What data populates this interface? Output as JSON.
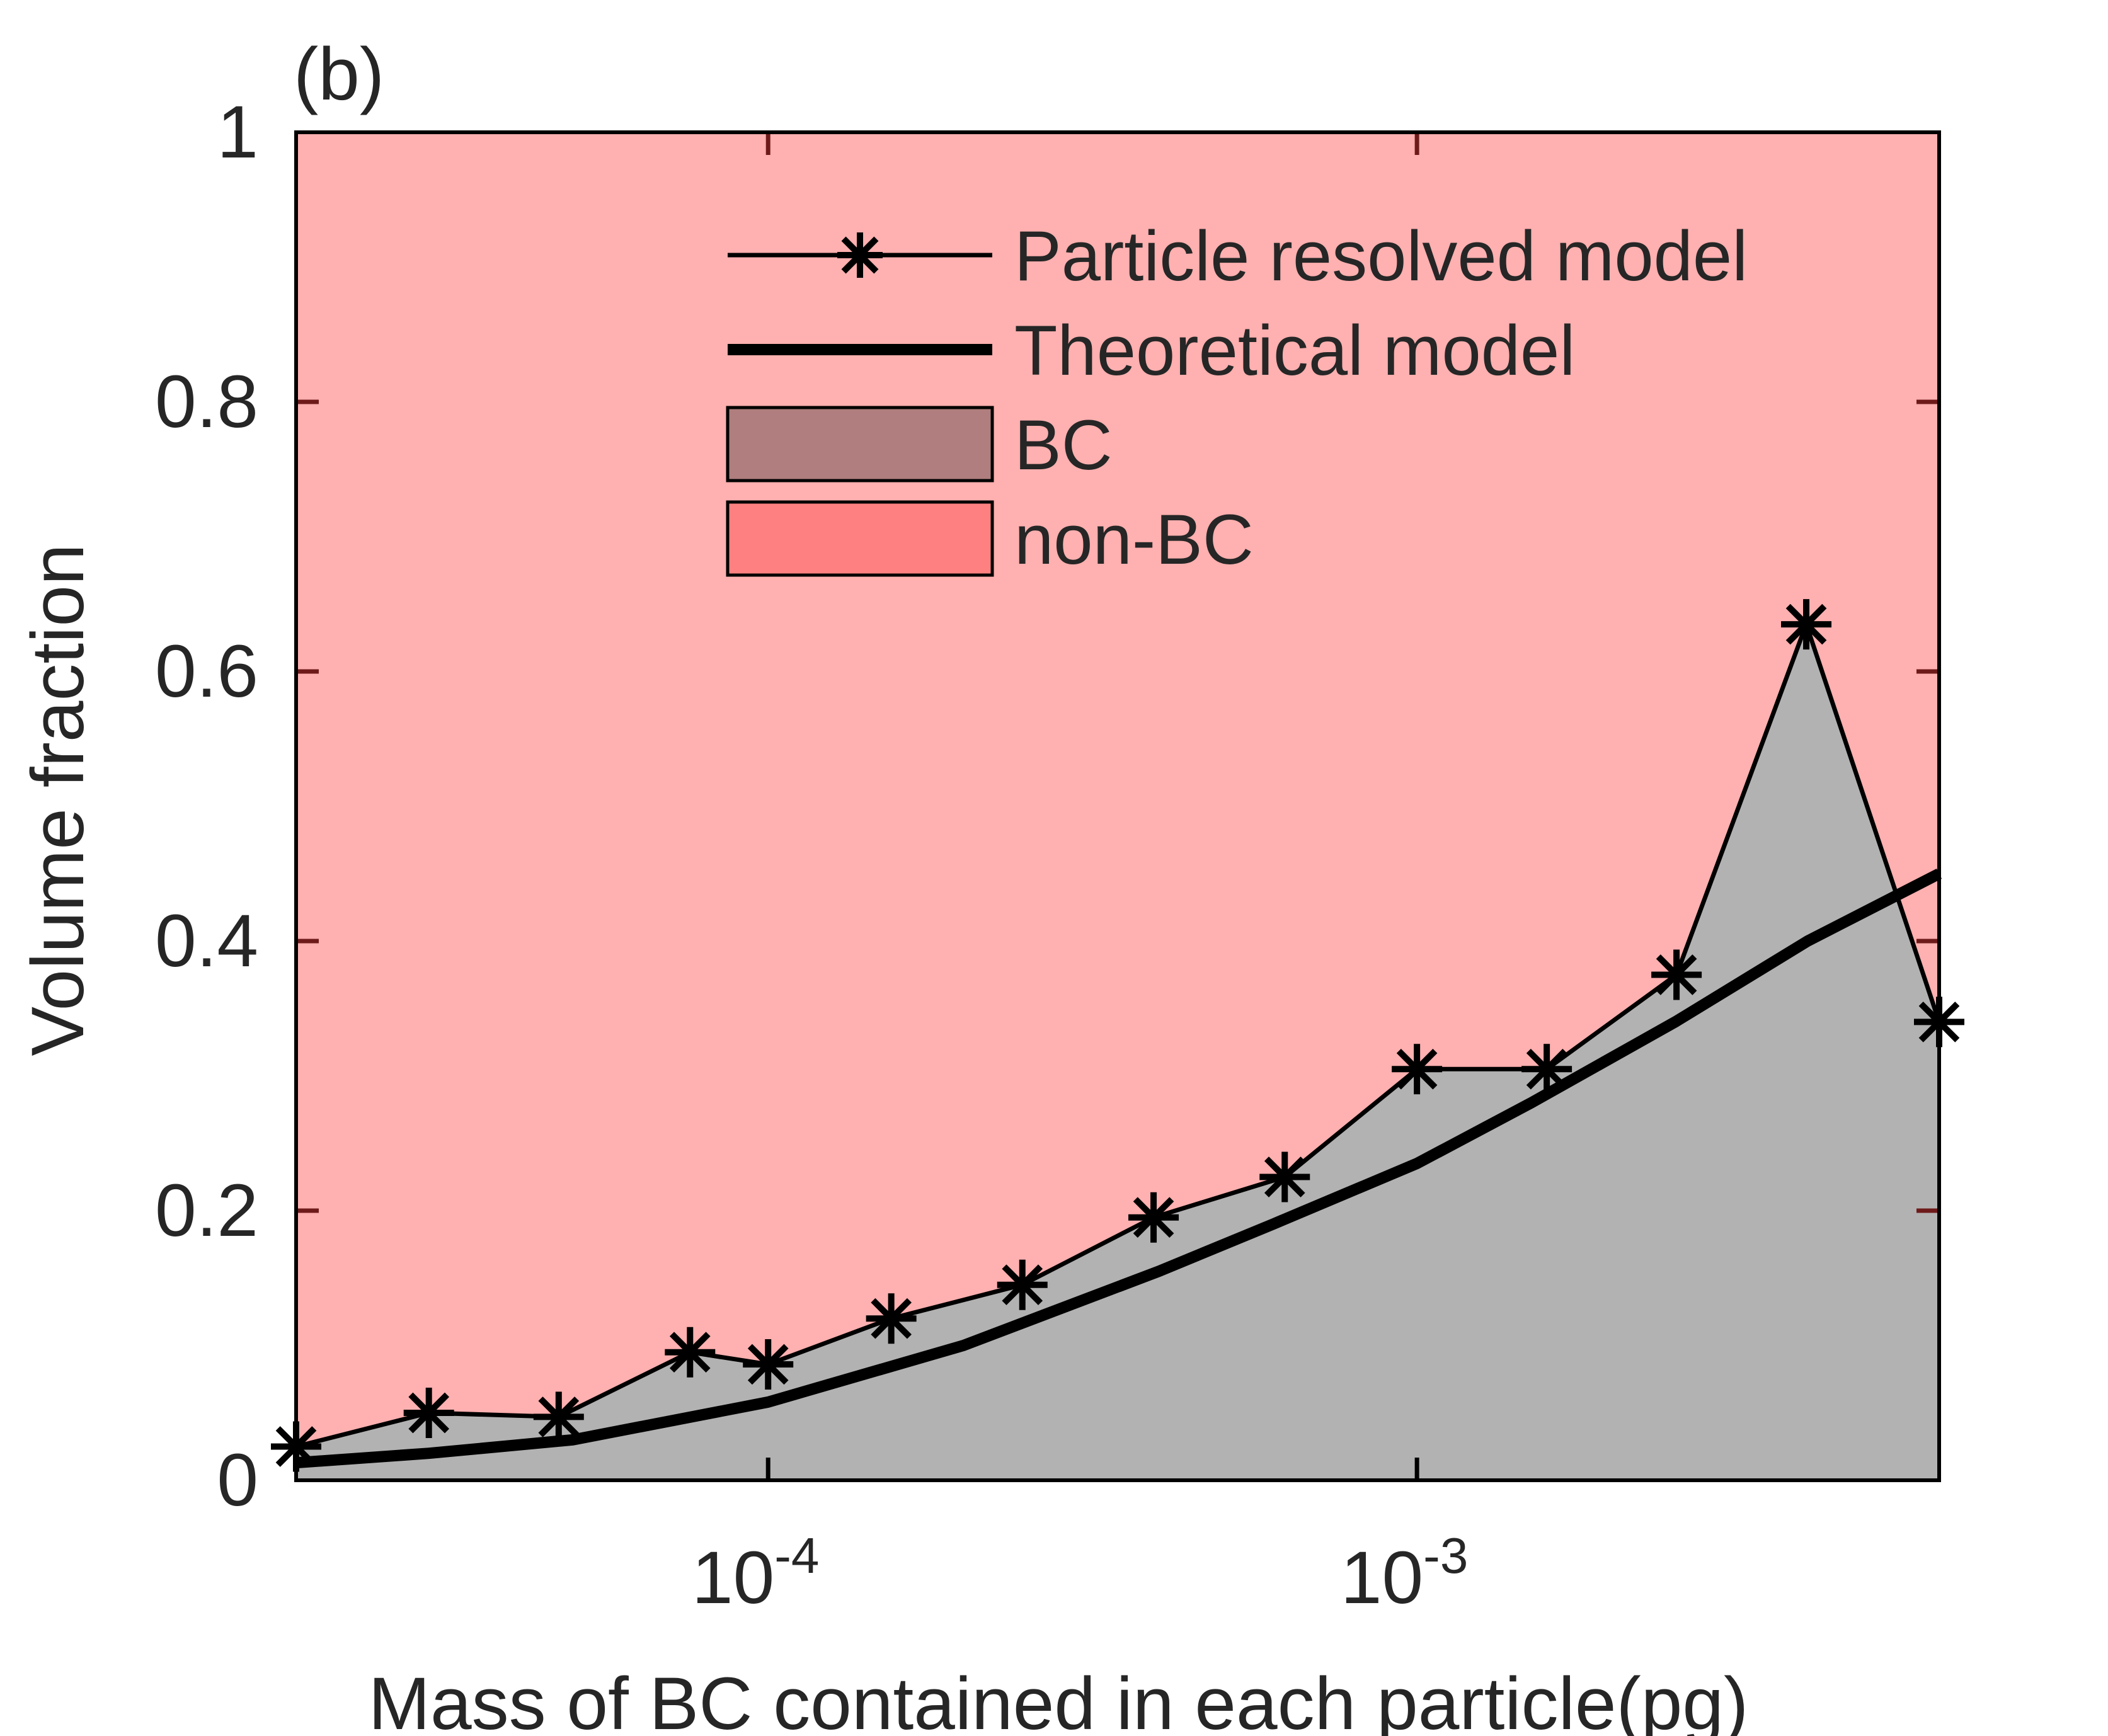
{
  "chart_data": {
    "type": "area",
    "panel_label": "(b)",
    "title": "",
    "xlabel": "Mass of BC contained in each particle(pg)",
    "ylabel": "Volume fraction",
    "xscale": "log",
    "xlim": [
      1.873e-05,
      0.00638
    ],
    "ylim": [
      0,
      1
    ],
    "yticks": [
      0,
      0.2,
      0.4,
      0.6,
      0.8,
      1
    ],
    "ytick_labels": [
      "0",
      "0.2",
      "0.4",
      "0.6",
      "0.8",
      "1"
    ],
    "xticks": [
      0.0001,
      0.001
    ],
    "xtick_labels": [
      {
        "base": "10",
        "exp": "-4"
      },
      {
        "base": "10",
        "exp": "-3"
      }
    ],
    "grid": false,
    "legend_position": "top-right",
    "legend": [
      {
        "label": "Particle resolved model",
        "kind": "line-marker"
      },
      {
        "label": "Theoretical model",
        "kind": "thick-line"
      },
      {
        "label": "BC",
        "kind": "patch",
        "color": "#b07e7e"
      },
      {
        "label": "non-BC",
        "kind": "patch",
        "color": "#ff8080"
      }
    ],
    "series": [
      {
        "name": "Particle resolved model",
        "x": [
          1.873e-05,
          3e-05,
          4.756e-05,
          7.58e-05,
          0.0001,
          0.0001548,
          0.0002465,
          0.0003927,
          0.0006255,
          0.001,
          0.001585,
          0.002512,
          0.003981,
          0.00638
        ],
        "y": [
          0.025,
          0.05,
          0.047,
          0.095,
          0.086,
          0.12,
          0.145,
          0.195,
          0.225,
          0.305,
          0.305,
          0.375,
          0.635,
          0.34
        ]
      },
      {
        "name": "Theoretical model",
        "x": [
          1.873e-05,
          3e-05,
          5e-05,
          0.0001,
          0.0002,
          0.0004,
          0.0006,
          0.001,
          0.0015,
          0.0025,
          0.004,
          0.00638
        ],
        "y": [
          0.013,
          0.02,
          0.03,
          0.058,
          0.1,
          0.155,
          0.19,
          0.235,
          0.28,
          0.34,
          0.4,
          0.45
        ]
      }
    ],
    "colors": {
      "bc_fill": "#b2b2b2",
      "non_bc_fill": "#ffb0b0",
      "line": "#000000",
      "axis": "#262626",
      "top_tick": "#6e1a1a"
    }
  }
}
